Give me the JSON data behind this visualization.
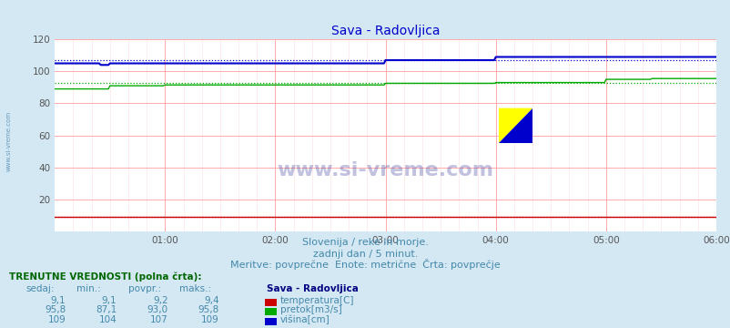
{
  "title": "Sava - Radovljica",
  "title_color": "#0000cc",
  "bg_color": "#d4e8f4",
  "plot_bg_color": "#ffffff",
  "grid_color_major": "#ffaaaa",
  "grid_color_minor": "#ffdddd",
  "xlim": [
    0,
    432
  ],
  "ylim": [
    0,
    120
  ],
  "yticks": [
    0,
    20,
    40,
    60,
    80,
    100,
    120
  ],
  "xtick_labels": [
    "01:00",
    "02:00",
    "03:00",
    "04:00",
    "05:00",
    "06:00"
  ],
  "xtick_positions": [
    72,
    144,
    216,
    288,
    360,
    432
  ],
  "watermark": "www.si-vreme.com",
  "subtitle1": "Slovenija / reke in morje.",
  "subtitle2": "zadnji dan / 5 minut.",
  "subtitle3": "Meritve: povprečne  Enote: metrične  Črta: povprečje",
  "subtitle_color": "#4488aa",
  "legend_title": "Sava - Radovljica",
  "legend_title_color": "#000080",
  "table_header": "TRENUTNE VREDNOSTI (polna črta):",
  "table_cols": [
    "sedaj:",
    "min.:",
    "povpr.:",
    "maks.:"
  ],
  "table_rows": [
    [
      "9,1",
      "9,1",
      "9,2",
      "9,4",
      "#cc0000",
      "temperatura[C]"
    ],
    [
      "95,8",
      "87,1",
      "93,0",
      "95,8",
      "#00aa00",
      "pretok[m3/s]"
    ],
    [
      "109",
      "104",
      "107",
      "109",
      "#0000cc",
      "višina[cm]"
    ]
  ],
  "temp_color": "#cc0000",
  "flow_color": "#00aa00",
  "height_color": "#0000cc",
  "n_points": 433,
  "avg_temp": 9.2,
  "avg_flow": 93.0,
  "avg_height": 107
}
